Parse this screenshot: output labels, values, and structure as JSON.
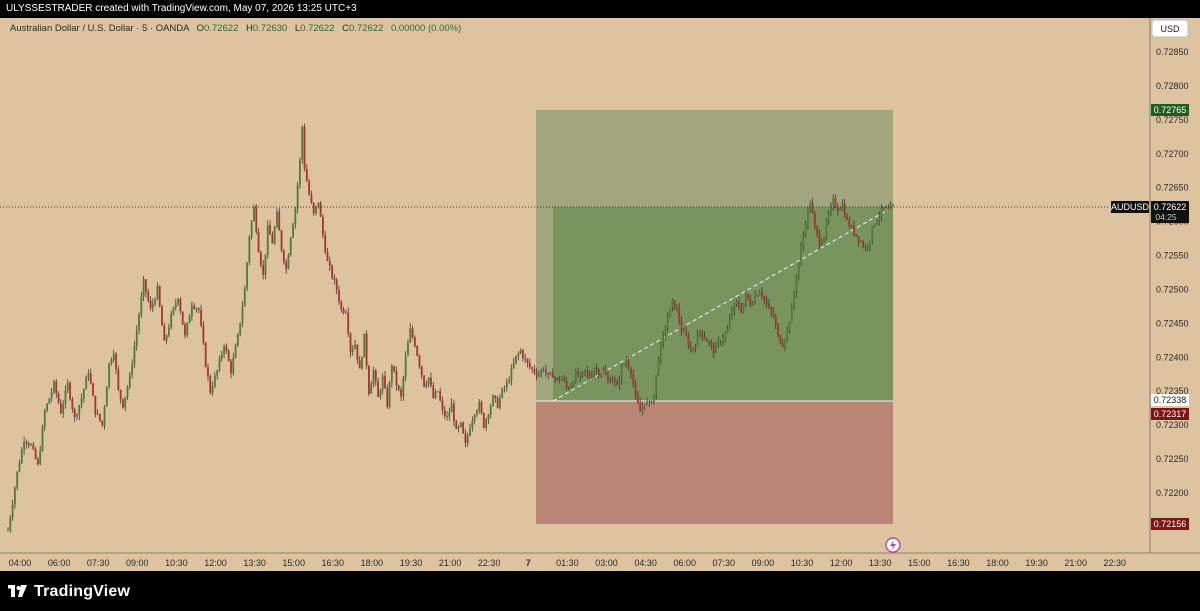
{
  "header": {
    "credit": "ULYSSESTRADER created with TradingView.com, May 07, 2026 13:25 UTC+3"
  },
  "legend": {
    "symbol": "Australian Dollar / U.S. Dollar · 5 · OANDA",
    "o_label": "O",
    "o": "0.72622",
    "h_label": "H",
    "h": "0.72630",
    "l_label": "L",
    "l": "0.72622",
    "c_label": "C",
    "c": "0.72622",
    "change": "0.00000 (0.00%)"
  },
  "currency_button": "USD",
  "footer": {
    "brand": "TradingView"
  },
  "colors": {
    "background": "#ddc3a0",
    "up_candle": "#4f7a3a",
    "down_candle": "#a8322f",
    "wick": "#2a2a2a",
    "profit_zone": "#a3a57e",
    "profit_realized": "#7a9460",
    "loss_zone": "#b98676",
    "target_badge": "#1e5e20",
    "stop_badge": "#7f1416"
  },
  "chart_data": {
    "type": "candlestick",
    "symbol": "AUDUSD",
    "timeframe": "5",
    "ylim": [
      0.7212,
      0.729
    ],
    "y_ticks": [
      "0.72850",
      "0.72800",
      "0.72750",
      "0.72700",
      "0.72650",
      "0.72600",
      "0.72550",
      "0.72500",
      "0.72450",
      "0.72400",
      "0.72350",
      "0.72300",
      "0.72250",
      "0.72200"
    ],
    "x_ticks": [
      "04:00",
      "06:00",
      "07:30",
      "09:00",
      "10:30",
      "12:00",
      "13:30",
      "15:00",
      "16:30",
      "18:00",
      "19:30",
      "21:00",
      "22:30",
      "7",
      "01:30",
      "03:00",
      "04:30",
      "06:00",
      "07:30",
      "09:00",
      "10:30",
      "12:00",
      "13:30",
      "15:00",
      "16:30",
      "18:00",
      "19:30",
      "21:00",
      "22:30"
    ],
    "path": [
      [
        0,
        0.72145
      ],
      [
        4,
        0.7223
      ],
      [
        7,
        0.7228
      ],
      [
        10,
        0.7227
      ],
      [
        13,
        0.7224
      ],
      [
        16,
        0.7232
      ],
      [
        20,
        0.7236
      ],
      [
        23,
        0.7232
      ],
      [
        26,
        0.7236
      ],
      [
        29,
        0.7231
      ],
      [
        32,
        0.7234
      ],
      [
        35,
        0.7238
      ],
      [
        38,
        0.7232
      ],
      [
        41,
        0.723
      ],
      [
        44,
        0.7239
      ],
      [
        46,
        0.7241
      ],
      [
        48,
        0.7235
      ],
      [
        50,
        0.7233
      ],
      [
        53,
        0.7237
      ],
      [
        56,
        0.7244
      ],
      [
        59,
        0.7251
      ],
      [
        62,
        0.7247
      ],
      [
        65,
        0.725
      ],
      [
        68,
        0.7242
      ],
      [
        71,
        0.7246
      ],
      [
        74,
        0.7249
      ],
      [
        77,
        0.7243
      ],
      [
        80,
        0.7248
      ],
      [
        83,
        0.7247
      ],
      [
        86,
        0.7239
      ],
      [
        88,
        0.7235
      ],
      [
        91,
        0.7238
      ],
      [
        94,
        0.7242
      ],
      [
        97,
        0.7238
      ],
      [
        100,
        0.7243
      ],
      [
        103,
        0.725
      ],
      [
        105,
        0.7258
      ],
      [
        107,
        0.7262
      ],
      [
        109,
        0.7256
      ],
      [
        111,
        0.7252
      ],
      [
        113,
        0.7259
      ],
      [
        115,
        0.7257
      ],
      [
        117,
        0.7261
      ],
      [
        119,
        0.7256
      ],
      [
        121,
        0.7253
      ],
      [
        123,
        0.7258
      ],
      [
        125,
        0.7262
      ],
      [
        127,
        0.7269
      ],
      [
        128,
        0.7274
      ],
      [
        129,
        0.7268
      ],
      [
        131,
        0.7264
      ],
      [
        133,
        0.7261
      ],
      [
        135,
        0.7263
      ],
      [
        137,
        0.7258
      ],
      [
        139,
        0.7254
      ],
      [
        141,
        0.7252
      ],
      [
        143,
        0.725
      ],
      [
        145,
        0.7247
      ],
      [
        147,
        0.7247
      ],
      [
        149,
        0.7241
      ],
      [
        151,
        0.7242
      ],
      [
        153,
        0.7238
      ],
      [
        155,
        0.7243
      ],
      [
        157,
        0.7235
      ],
      [
        159,
        0.7238
      ],
      [
        161,
        0.7234
      ],
      [
        163,
        0.7237
      ],
      [
        165,
        0.7233
      ],
      [
        167,
        0.7239
      ],
      [
        169,
        0.7236
      ],
      [
        171,
        0.7234
      ],
      [
        173,
        0.724
      ],
      [
        175,
        0.7244
      ],
      [
        177,
        0.7242
      ],
      [
        179,
        0.7239
      ],
      [
        181,
        0.7236
      ],
      [
        183,
        0.7237
      ],
      [
        185,
        0.7234
      ],
      [
        187,
        0.7235
      ],
      [
        189,
        0.7232
      ],
      [
        191,
        0.7231
      ],
      [
        193,
        0.7233
      ],
      [
        195,
        0.7229
      ],
      [
        197,
        0.723
      ],
      [
        199,
        0.7227
      ],
      [
        201,
        0.723
      ],
      [
        203,
        0.7232
      ],
      [
        205,
        0.7233
      ],
      [
        207,
        0.723
      ],
      [
        209,
        0.7232
      ],
      [
        211,
        0.7234
      ],
      [
        213,
        0.7233
      ],
      [
        215,
        0.7235
      ],
      [
        217,
        0.7236
      ],
      [
        219,
        0.7238
      ],
      [
        221,
        0.724
      ],
      [
        223,
        0.7241
      ],
      [
        225,
        0.72395
      ],
      [
        227,
        0.72385
      ],
      [
        229,
        0.7238
      ],
      [
        231,
        0.72375
      ],
      [
        233,
        0.72385
      ],
      [
        235,
        0.7237
      ],
      [
        237,
        0.72375
      ],
      [
        239,
        0.72365
      ],
      [
        241,
        0.7237
      ],
      [
        243,
        0.72355
      ],
      [
        245,
        0.7236
      ],
      [
        247,
        0.72375
      ],
      [
        249,
        0.7237
      ],
      [
        251,
        0.7238
      ],
      [
        253,
        0.7237
      ],
      [
        255,
        0.72385
      ],
      [
        257,
        0.72378
      ],
      [
        259,
        0.7238
      ],
      [
        261,
        0.72365
      ],
      [
        263,
        0.7237
      ],
      [
        265,
        0.72355
      ],
      [
        267,
        0.72385
      ],
      [
        269,
        0.72395
      ],
      [
        271,
        0.7238
      ],
      [
        273,
        0.7234
      ],
      [
        275,
        0.7232
      ],
      [
        277,
        0.72335
      ],
      [
        279,
        0.7233
      ],
      [
        281,
        0.72345
      ],
      [
        283,
        0.724
      ],
      [
        285,
        0.7243
      ],
      [
        287,
        0.7246
      ],
      [
        289,
        0.7248
      ],
      [
        291,
        0.7247
      ],
      [
        293,
        0.7244
      ],
      [
        295,
        0.7243
      ],
      [
        297,
        0.7241
      ],
      [
        299,
        0.7242
      ],
      [
        301,
        0.7244
      ],
      [
        303,
        0.7243
      ],
      [
        305,
        0.7242
      ],
      [
        307,
        0.7241
      ],
      [
        309,
        0.7242
      ],
      [
        311,
        0.7243
      ],
      [
        313,
        0.7244
      ],
      [
        315,
        0.7247
      ],
      [
        317,
        0.7248
      ],
      [
        319,
        0.7247
      ],
      [
        321,
        0.7249
      ],
      [
        323,
        0.7248
      ],
      [
        325,
        0.7249
      ],
      [
        327,
        0.725
      ],
      [
        329,
        0.72485
      ],
      [
        331,
        0.7247
      ],
      [
        333,
        0.7246
      ],
      [
        335,
        0.7243
      ],
      [
        337,
        0.7242
      ],
      [
        339,
        0.7244
      ],
      [
        341,
        0.7247
      ],
      [
        343,
        0.7252
      ],
      [
        345,
        0.7256
      ],
      [
        347,
        0.726
      ],
      [
        349,
        0.7263
      ],
      [
        351,
        0.7259
      ],
      [
        353,
        0.7257
      ],
      [
        355,
        0.7258
      ],
      [
        357,
        0.7261
      ],
      [
        359,
        0.7263
      ],
      [
        361,
        0.7262
      ],
      [
        363,
        0.72625
      ],
      [
        365,
        0.726
      ],
      [
        367,
        0.7259
      ],
      [
        369,
        0.7258
      ],
      [
        371,
        0.7257
      ],
      [
        373,
        0.7256
      ],
      [
        375,
        0.72575
      ],
      [
        377,
        0.726
      ],
      [
        379,
        0.7261
      ],
      [
        381,
        0.7262
      ],
      [
        383,
        0.72615
      ],
      [
        385,
        0.72622
      ]
    ],
    "position": {
      "type": "long",
      "target": "0.72765",
      "entry": "0.72338",
      "stop": "0.72317",
      "stop_lower": "0.72156",
      "last_price": "0.72622",
      "countdown": "04:25",
      "last_label": "AUDUSD"
    },
    "xlabel": "",
    "ylabel": "",
    "grid": false,
    "legend": "top-left"
  }
}
